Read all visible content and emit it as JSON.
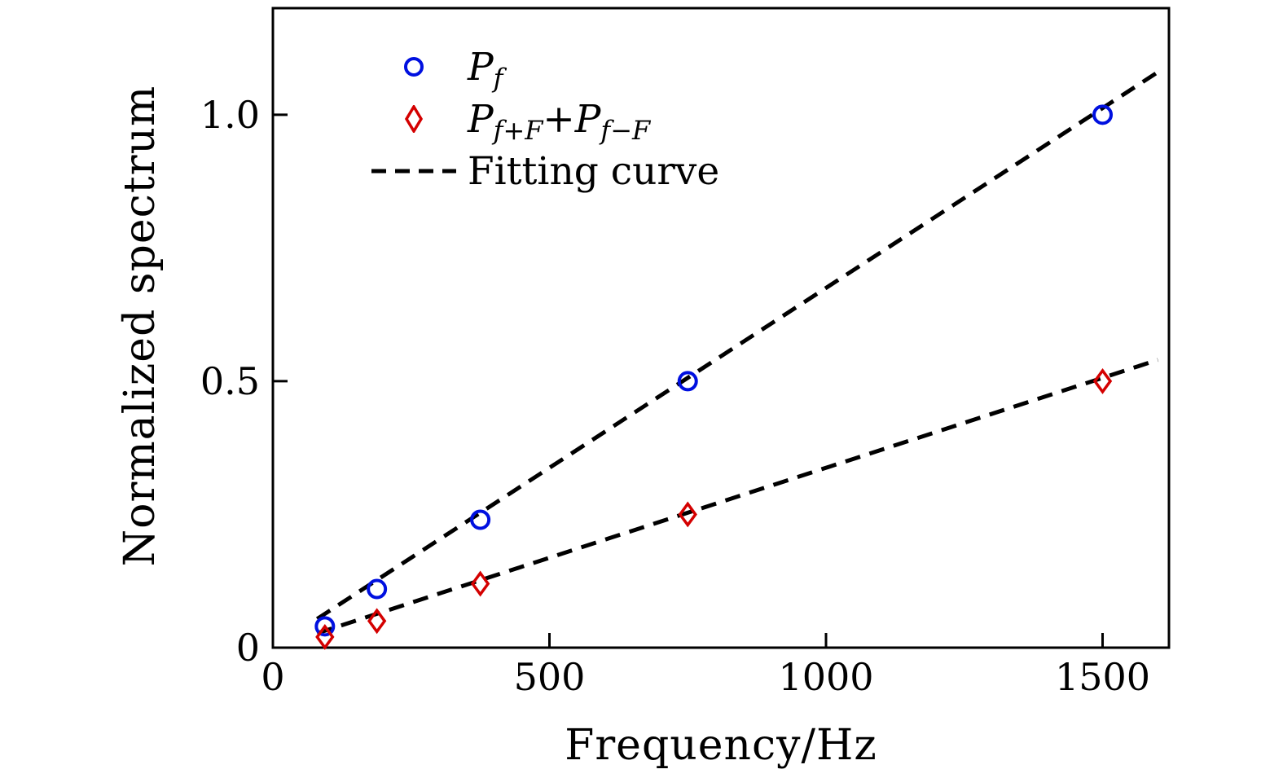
{
  "chart_data": {
    "type": "scatter",
    "title": "",
    "xlabel": "Frequency/Hz",
    "ylabel": "Normalized spectrum",
    "xlim": [
      0,
      1620
    ],
    "ylim": [
      0,
      1.2
    ],
    "grid": false,
    "legend_position": "upper-left-inside",
    "axis_color": "#000000",
    "fit_color": "#000000",
    "xticks": [
      {
        "v": 0,
        "label": "0"
      },
      {
        "v": 500,
        "label": "500"
      },
      {
        "v": 1000,
        "label": "1000"
      },
      {
        "v": 1500,
        "label": "1500"
      }
    ],
    "yticks": [
      {
        "v": 0,
        "label": "0"
      },
      {
        "v": 0.5,
        "label": "0.5"
      },
      {
        "v": 1.0,
        "label": "1.0"
      }
    ],
    "x": [
      94,
      188,
      375,
      750,
      1500
    ],
    "series": [
      {
        "name": "Pf",
        "marker": "circle",
        "color": "#0010e0",
        "values": [
          0.04,
          0.11,
          0.24,
          0.5,
          1.0
        ]
      },
      {
        "name": "Pf+F + Pf-F",
        "marker": "diamond",
        "color": "#d40000",
        "values": [
          0.02,
          0.05,
          0.12,
          0.25,
          0.5
        ]
      }
    ],
    "fits": [
      {
        "name": "Fitting curve (Pf)",
        "x": [
          80,
          1600
        ],
        "y": [
          0.054,
          1.08
        ]
      },
      {
        "name": "Fitting curve (Pf+F + Pf-F)",
        "x": [
          80,
          1600
        ],
        "y": [
          0.027,
          0.54
        ]
      }
    ]
  },
  "legend": {
    "items": [
      {
        "base": "P",
        "sub": "f"
      },
      {
        "base": "P",
        "sub": "f+F",
        "op": "+",
        "base2": "P",
        "sub2": "f−F"
      },
      {
        "label": "Fitting curve"
      }
    ]
  }
}
